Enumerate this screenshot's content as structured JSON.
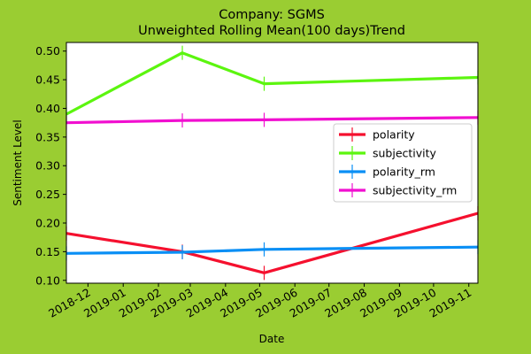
{
  "colors": {
    "figure_bg": "#9acd32",
    "axes_bg": "#ffffff",
    "polarity": "#f5102e",
    "subjectivity": "#5cf50f",
    "polarity_rm": "#0a8ff5",
    "subjectivity_rm": "#f10fd0"
  },
  "chart_data": {
    "type": "line",
    "title": "Company: SGMS",
    "subtitle": "Unweighted Rolling Mean(100 days)Trend",
    "xlabel": "Date",
    "ylabel": "Sentiment Level",
    "x_type": "date",
    "xlim": [
      "2018-11-12",
      "2019-11-09"
    ],
    "ylim": [
      0.095,
      0.515
    ],
    "xticks": [
      "2018-12-01",
      "2019-01-01",
      "2019-02-01",
      "2019-03-01",
      "2019-04-01",
      "2019-05-01",
      "2019-06-01",
      "2019-07-01",
      "2019-08-01",
      "2019-09-01",
      "2019-10-01",
      "2019-11-01"
    ],
    "xtick_labels": [
      "2018-12",
      "2019-01",
      "2019-02",
      "2019-03",
      "2019-04",
      "2019-05",
      "2019-06",
      "2019-07",
      "2019-08",
      "2019-09",
      "2019-10",
      "2019-11"
    ],
    "yticks": [
      0.1,
      0.15,
      0.2,
      0.25,
      0.3,
      0.35,
      0.4,
      0.45,
      0.5
    ],
    "ytick_labels": [
      "0.10",
      "0.15",
      "0.20",
      "0.25",
      "0.30",
      "0.35",
      "0.40",
      "0.45",
      "0.50"
    ],
    "grid": false,
    "legend_position": "center-right",
    "series": [
      {
        "name": "polarity",
        "color_key": "polarity",
        "x": [
          "2018-11-12",
          "2019-02-22",
          "2019-05-05",
          "2019-11-09"
        ],
        "y": [
          0.182,
          0.15,
          0.113,
          0.217
        ]
      },
      {
        "name": "subjectivity",
        "color_key": "subjectivity",
        "x": [
          "2018-11-12",
          "2019-02-22",
          "2019-05-05",
          "2019-11-09"
        ],
        "y": [
          0.39,
          0.497,
          0.443,
          0.454
        ]
      },
      {
        "name": "polarity_rm",
        "color_key": "polarity_rm",
        "x": [
          "2018-11-12",
          "2019-02-22",
          "2019-05-05",
          "2019-11-09"
        ],
        "y": [
          0.147,
          0.149,
          0.154,
          0.158
        ]
      },
      {
        "name": "subjectivity_rm",
        "color_key": "subjectivity_rm",
        "x": [
          "2018-11-12",
          "2019-02-22",
          "2019-05-05",
          "2019-11-09"
        ],
        "y": [
          0.375,
          0.379,
          0.38,
          0.384
        ]
      }
    ]
  }
}
